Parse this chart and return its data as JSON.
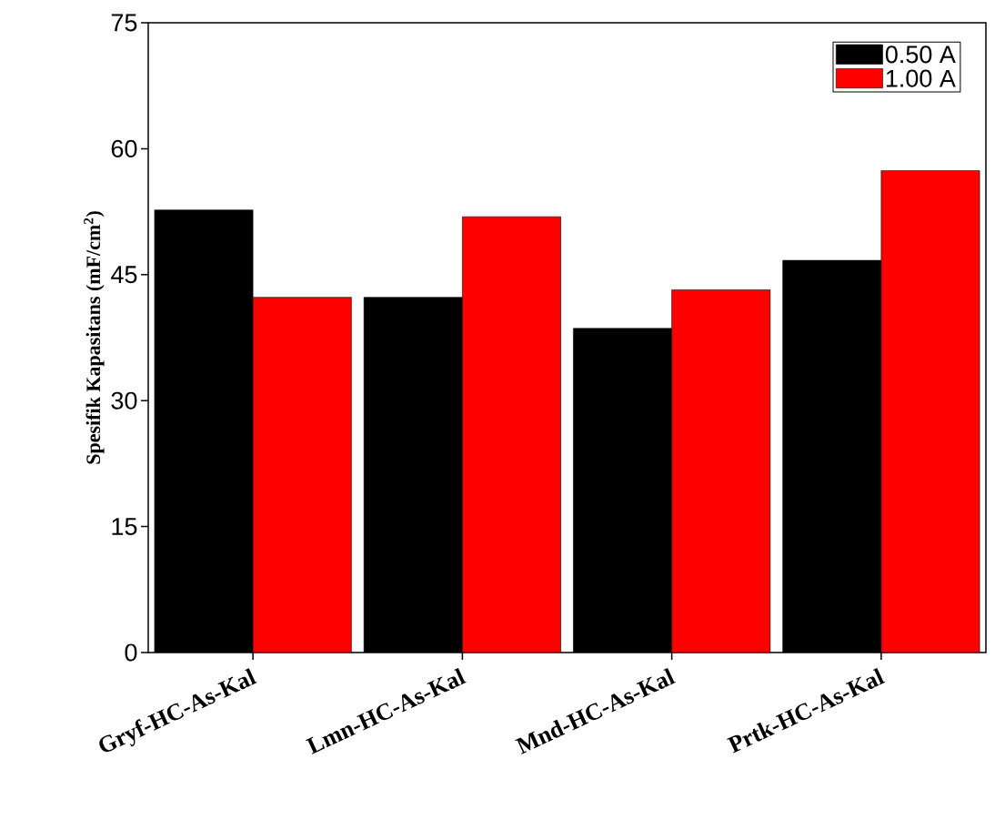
{
  "chart_data": {
    "type": "bar",
    "ylabel": "Spesifik Kapasitans (mF/cm$^{2}$)",
    "categories": [
      "Gryf-HC-As-Kal",
      "Lmn-HC-As-Kal",
      "Mnd-HC-As-Kal",
      "Prtk-HC-As-Kal"
    ],
    "series": [
      {
        "name": "0.50 A",
        "color": "#000000",
        "values": [
          52.7,
          42.3,
          38.6,
          46.7
        ]
      },
      {
        "name": "1.00 A",
        "color": "#ff0000",
        "values": [
          42.3,
          51.9,
          43.2,
          57.4
        ]
      }
    ],
    "ylim": [
      0,
      75
    ],
    "yticks": [
      0,
      15,
      30,
      45,
      60,
      75
    ],
    "legend": "top right"
  }
}
